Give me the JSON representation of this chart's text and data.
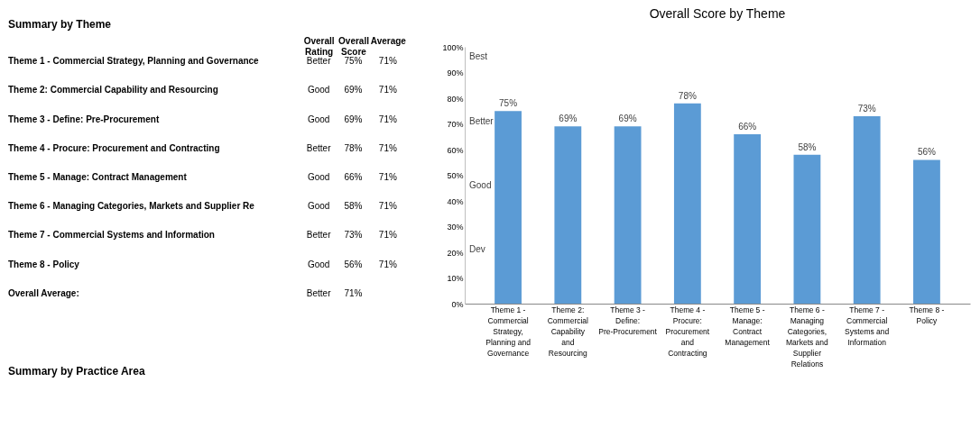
{
  "chart_data": [
    {
      "type": "other",
      "title": "Summary by Theme",
      "categories": [
        "Overall Rating",
        "Overall Score",
        "Average"
      ],
      "y_categories": [
        "Theme 1 - Commercial Strategy, Planning and Governance",
        "Theme 2: Commercial Capability and Resourcing",
        "Theme 3 - Define: Pre-Procurement",
        "Theme 4 - Procure: Procurement and Contracting",
        "Theme 5 - Manage: Contract Management",
        "Theme 6 - Managing Categories, Markets and Supplier Re",
        "Theme 7 - Commercial Systems and Information",
        "Theme 8 - Policy",
        "Overall Average:"
      ],
      "cell_labels": [
        [
          "Better",
          "75%",
          "71%"
        ],
        [
          "Good",
          "69%",
          "71%"
        ],
        [
          "Good",
          "69%",
          "71%"
        ],
        [
          "Better",
          "78%",
          "71%"
        ],
        [
          "Good",
          "66%",
          "71%"
        ],
        [
          "Good",
          "58%",
          "71%"
        ],
        [
          "Better",
          "73%",
          "71%"
        ],
        [
          "Good",
          "56%",
          "71%"
        ],
        [
          "Better",
          "71%",
          null
        ]
      ],
      "annotations": [
        "Summary by Practice Area"
      ]
    },
    {
      "type": "bar",
      "title": "Overall Score by Theme",
      "categories": [
        "Theme 1 - Commercial Strategy, Planning and Governance",
        "Theme 2: Commercial Capability and Resourcing",
        "Theme 3 - Define: Pre-Procurement",
        "Theme 4 - Procure: Procurement and Contracting",
        "Theme 5 - Manage: Contract Management",
        "Theme 6 - Managing Categories, Markets and Supplier Relations",
        "Theme 7 - Commercial Systems and Information",
        "Theme 8 - Policy"
      ],
      "values": [
        75,
        69,
        69,
        78,
        66,
        58,
        73,
        56
      ],
      "value_labels": [
        "75%",
        "69%",
        "69%",
        "78%",
        "66%",
        "58%",
        "73%",
        "56%"
      ],
      "color": "#5b9bd5",
      "ylim": [
        0,
        100
      ],
      "yticks": [
        {
          "value": 0,
          "label": "0%"
        },
        {
          "value": 10,
          "label": "10%"
        },
        {
          "value": 20,
          "label": "20%"
        },
        {
          "value": 30,
          "label": "30%"
        },
        {
          "value": 40,
          "label": "40%"
        },
        {
          "value": 50,
          "label": "50%"
        },
        {
          "value": 60,
          "label": "60%"
        },
        {
          "value": 70,
          "label": "70%"
        },
        {
          "value": 80,
          "label": "80%"
        },
        {
          "value": 90,
          "label": "90%"
        },
        {
          "value": 100,
          "label": "100%"
        }
      ],
      "grid": false,
      "annotations": [
        "Best",
        "Better",
        "Good",
        "Dev"
      ]
    }
  ]
}
